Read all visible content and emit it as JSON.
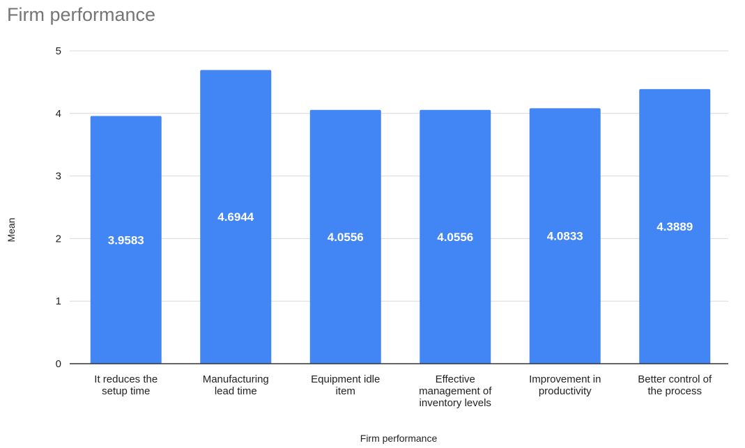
{
  "chart_data": {
    "type": "bar",
    "title": "Firm performance",
    "xlabel": "Firm performance",
    "ylabel": "Mean",
    "ylim": [
      0,
      5
    ],
    "yticks": [
      0,
      1,
      2,
      3,
      4,
      5
    ],
    "grid": true,
    "legend": "none",
    "bar_color": "#4285f4",
    "categories": [
      [
        "It reduces the",
        "setup time"
      ],
      [
        "Manufacturing",
        "lead time"
      ],
      [
        "Equipment idle",
        "item"
      ],
      [
        "Effective",
        "management of",
        "inventory levels"
      ],
      [
        "Improvement in",
        "productivity"
      ],
      [
        "Better control of",
        "the process"
      ]
    ],
    "values": [
      3.9583,
      4.6944,
      4.0556,
      4.0556,
      4.0833,
      4.3889
    ],
    "data_labels": [
      "3.9583",
      "4.6944",
      "4.0556",
      "4.0556",
      "4.0833",
      "4.3889"
    ]
  }
}
